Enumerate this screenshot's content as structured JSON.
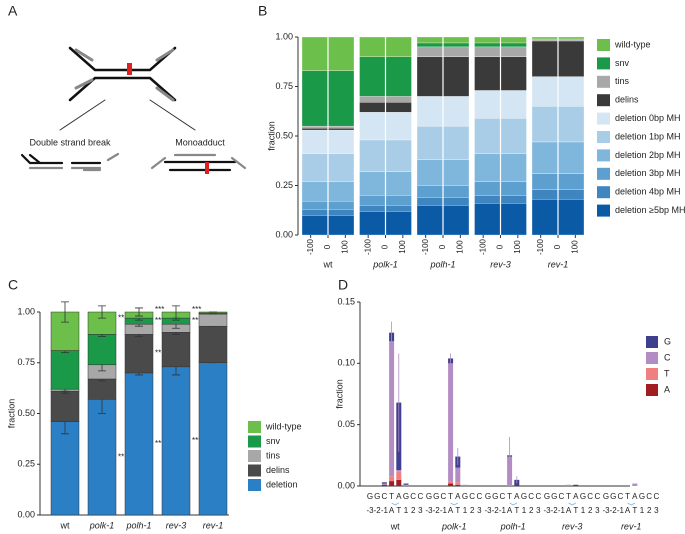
{
  "panels": [
    "A",
    "B",
    "C",
    "D"
  ],
  "diagram": {
    "left_label": "Double strand break",
    "right_label": "Monoadduct"
  },
  "chart_data": [
    {
      "type": "profile",
      "ylabel": "fraction",
      "categories": [
        "wt",
        "polk-1",
        "polh-1",
        "rev-3",
        "rev-1"
      ],
      "xlim": [
        -150,
        150
      ],
      "xticks": [
        -100,
        0,
        100
      ],
      "ylim": [
        0,
        1
      ],
      "yticks": [
        {
          "value": 0,
          "label": "0.00"
        },
        {
          "value": 0.25,
          "label": "0.25"
        },
        {
          "value": 0.5,
          "label": "0.50"
        },
        {
          "value": 0.75,
          "label": "0.75"
        },
        {
          "value": 1,
          "label": "1.00"
        }
      ],
      "series": [
        {
          "name": "wild-type",
          "color": "#6cbf4a",
          "values": [
            0.17,
            0.1,
            0.03,
            0.03,
            0.01
          ]
        },
        {
          "name": "snv",
          "color": "#1a9a48",
          "values": [
            0.28,
            0.2,
            0.02,
            0.02,
            0.0
          ]
        },
        {
          "name": "tins",
          "color": "#a8a8a8",
          "values": [
            0.01,
            0.03,
            0.05,
            0.05,
            0.01
          ]
        },
        {
          "name": "delins",
          "color": "#3a3a3a",
          "values": [
            0.01,
            0.05,
            0.2,
            0.17,
            0.18
          ]
        },
        {
          "name": "deletion 0bp MH",
          "color": "#d4e6f4",
          "values": [
            0.12,
            0.14,
            0.15,
            0.14,
            0.15
          ]
        },
        {
          "name": "deletion 1bp MH",
          "color": "#a9cde6",
          "values": [
            0.14,
            0.16,
            0.17,
            0.18,
            0.18
          ]
        },
        {
          "name": "deletion 2bp MH",
          "color": "#7fb6dc",
          "values": [
            0.1,
            0.12,
            0.13,
            0.14,
            0.16
          ]
        },
        {
          "name": "deletion 3bp MH",
          "color": "#5d9fcf",
          "values": [
            0.04,
            0.05,
            0.06,
            0.07,
            0.08
          ]
        },
        {
          "name": "deletion 4bp MH",
          "color": "#3f86c0",
          "values": [
            0.03,
            0.03,
            0.04,
            0.04,
            0.05
          ]
        },
        {
          "name": "deletion ≥5bp MH",
          "color": "#0b5aa6",
          "values": [
            0.1,
            0.12,
            0.15,
            0.16,
            0.18
          ]
        }
      ]
    },
    {
      "type": "bar",
      "ylabel": "fraction",
      "categories": [
        "wt",
        "polk-1",
        "polh-1",
        "rev-3",
        "rev-1"
      ],
      "ylim": [
        0,
        1
      ],
      "yticks": [
        {
          "value": 0,
          "label": "0.00"
        },
        {
          "value": 0.25,
          "label": "0.25"
        },
        {
          "value": 0.5,
          "label": "0.50"
        },
        {
          "value": 0.75,
          "label": "0.75"
        },
        {
          "value": 1,
          "label": "1.00"
        }
      ],
      "series": [
        {
          "name": "wild-type",
          "color": "#6cbf4a",
          "values": [
            0.19,
            0.11,
            0.03,
            0.03,
            0.005
          ],
          "errors": [
            0.05,
            0.03,
            0.02,
            0.03,
            0.0
          ],
          "significance": [
            null,
            "**",
            "***",
            "***",
            null
          ]
        },
        {
          "name": "snv",
          "color": "#1a9a48",
          "values": [
            0.19,
            0.15,
            0.03,
            0.03,
            0.005
          ],
          "errors": [
            0.01,
            0.01,
            0.01,
            0.01,
            0.0
          ],
          "significance": [
            null,
            null,
            "***",
            "***",
            null
          ]
        },
        {
          "name": "tins",
          "color": "#a8a8a8",
          "values": [
            0.01,
            0.07,
            0.05,
            0.04,
            0.06
          ],
          "errors": [
            0.01,
            0.03,
            0.01,
            0.02,
            0.0
          ],
          "significance": [
            null,
            null,
            null,
            null,
            null
          ]
        },
        {
          "name": "delins",
          "color": "#4a4a4a",
          "values": [
            0.15,
            0.1,
            0.19,
            0.17,
            0.18
          ],
          "errors": [
            0.01,
            0.01,
            0.01,
            0.01,
            0.0
          ],
          "significance": [
            null,
            null,
            "**",
            null,
            null
          ]
        },
        {
          "name": "deletion",
          "color": "#2b7fc4",
          "values": [
            0.46,
            0.57,
            0.7,
            0.73,
            0.75
          ],
          "errors": [
            0.06,
            0.07,
            0.01,
            0.04,
            0.0
          ],
          "significance": [
            null,
            "**",
            "***",
            "***",
            null
          ]
        }
      ]
    },
    {
      "type": "groupedbar",
      "ylabel": "fraction",
      "groups": [
        "wt",
        "polk-1",
        "polh-1",
        "rev-3",
        "rev-1"
      ],
      "sequence": [
        "G",
        "G",
        "C",
        "T",
        "A",
        "G",
        "C",
        "C"
      ],
      "positions": [
        "-3",
        "-2",
        "-1",
        "A",
        "T",
        "1",
        "2",
        "3"
      ],
      "ylim": [
        0,
        0.15
      ],
      "yticks": [
        {
          "value": 0,
          "label": "0.00"
        },
        {
          "value": 0.05,
          "label": "0.05"
        },
        {
          "value": 0.1,
          "label": "0.10"
        },
        {
          "value": 0.15,
          "label": "0.15"
        }
      ],
      "series": [
        {
          "name": "A",
          "color": "#a11d21",
          "values": [
            [
              0,
              0,
              0.001,
              0.004,
              0.005,
              0,
              0,
              0
            ],
            [
              0,
              0,
              0,
              0.002,
              0.001,
              0,
              0,
              0
            ],
            [
              0,
              0,
              0,
              0,
              0,
              0,
              0,
              0
            ],
            [
              0,
              0,
              0,
              0,
              0,
              0,
              0,
              0
            ],
            [
              0,
              0,
              0,
              0,
              0,
              0,
              0,
              0
            ]
          ]
        },
        {
          "name": "T",
          "color": "#f08080",
          "values": [
            [
              0,
              0,
              0,
              0.004,
              0.007,
              0,
              0,
              0
            ],
            [
              0,
              0,
              0,
              0.002,
              0.002,
              0,
              0,
              0
            ],
            [
              0,
              0,
              0,
              0,
              0,
              0,
              0,
              0
            ],
            [
              0,
              0,
              0,
              0,
              0,
              0,
              0,
              0
            ],
            [
              0,
              0,
              0,
              0,
              0,
              0,
              0,
              0
            ]
          ]
        },
        {
          "name": "C",
          "color": "#b48cc4",
          "values": [
            [
              0,
              0,
              0.001,
              0.11,
              0.001,
              0.001,
              0,
              0
            ],
            [
              0,
              0,
              0,
              0.096,
              0.012,
              0.001,
              0,
              0
            ],
            [
              0,
              0,
              0,
              0.024,
              0,
              0,
              0,
              0
            ],
            [
              0,
              0,
              0,
              0.001,
              0,
              0,
              0,
              0
            ],
            [
              0,
              0,
              0,
              0,
              0.002,
              0,
              0,
              0
            ]
          ]
        },
        {
          "name": "G",
          "color": "#3f3f8f",
          "values": [
            [
              0,
              0,
              0.001,
              0.007,
              0.055,
              0.001,
              0,
              0
            ],
            [
              0,
              0,
              0,
              0.004,
              0.009,
              0,
              0,
              0
            ],
            [
              0,
              0,
              0,
              0.001,
              0.005,
              0,
              0,
              0
            ],
            [
              0,
              0,
              0,
              0,
              0.001,
              0,
              0,
              0
            ],
            [
              0,
              0,
              0,
              0,
              0,
              0,
              0,
              0
            ]
          ]
        }
      ],
      "errors": [
        [
          null,
          null,
          null,
          0.009,
          0.04,
          null,
          null,
          null
        ],
        [
          null,
          null,
          null,
          0.004,
          0.007,
          null,
          null,
          null
        ],
        [
          null,
          null,
          null,
          0.015,
          0.003,
          null,
          null,
          null
        ],
        [
          null,
          null,
          null,
          null,
          null,
          null,
          null,
          null
        ],
        [
          null,
          null,
          null,
          null,
          null,
          null,
          null,
          null
        ]
      ]
    }
  ]
}
